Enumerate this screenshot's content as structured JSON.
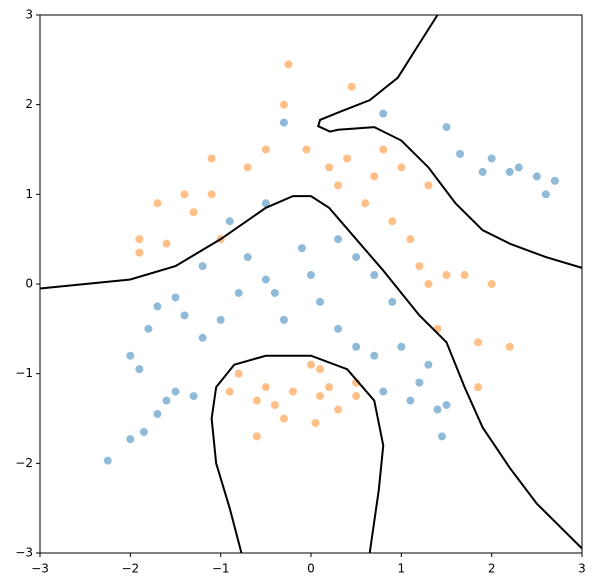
{
  "chart_data": {
    "type": "scatter",
    "xlim": [
      -3,
      3
    ],
    "ylim": [
      -3,
      3
    ],
    "xticks": [
      {
        "value": -3,
        "label": "−3"
      },
      {
        "value": -2,
        "label": "−2"
      },
      {
        "value": -1,
        "label": "−1"
      },
      0,
      1,
      2,
      3
    ],
    "yticks": [
      {
        "value": -3,
        "label": "−3"
      },
      {
        "value": -2,
        "label": "−2"
      },
      {
        "value": -1,
        "label": "−1"
      },
      0,
      1,
      2,
      3
    ],
    "grid": false,
    "series": [
      {
        "color": "#1f77b4",
        "x": [
          -2.25,
          -2,
          -1.85,
          -1.7,
          -1.6,
          -2,
          -1.9,
          -1.8,
          -1.7,
          -1.5,
          -1.4,
          -1.2,
          -1,
          -0.8,
          -0.7,
          -0.5,
          -0.3,
          -0.1,
          0,
          0.3,
          0.5,
          0.7,
          0.9,
          0.3,
          0.5,
          0.7,
          1,
          1.2,
          1.4,
          1.5,
          1.45,
          1.1,
          0.8,
          -1.3,
          -1.5,
          -0.3,
          0.8,
          1.5,
          1.65,
          2,
          2.2,
          2.3,
          2.5,
          2.6,
          2.7,
          1.9,
          -0.5,
          -0.9,
          -1.2,
          -0.4,
          0.1,
          1.3
        ],
        "y": [
          -1.97,
          -1.73,
          -1.65,
          -1.45,
          -1.3,
          -0.8,
          -0.95,
          -0.5,
          -0.25,
          -0.15,
          -0.35,
          -0.6,
          -0.4,
          -0.1,
          0.3,
          0.05,
          -0.4,
          0.4,
          0.1,
          0.5,
          0.3,
          0.1,
          -0.2,
          -0.5,
          -0.7,
          -0.8,
          -0.7,
          -1.1,
          -1.4,
          -1.35,
          -1.7,
          -1.3,
          -1.2,
          -1.25,
          -1.2,
          1.8,
          1.9,
          1.75,
          1.45,
          1.4,
          1.25,
          1.3,
          1.2,
          1,
          1.15,
          1.25,
          0.9,
          0.7,
          0.2,
          -0.1,
          -0.2,
          -0.9
        ]
      },
      {
        "color": "#ff7f0e",
        "x": [
          -1.9,
          -1.9,
          -1.7,
          -1.6,
          -1.4,
          -1.3,
          -1.1,
          -1,
          -0.7,
          -0.5,
          -0.3,
          -0.25,
          -0.05,
          0.2,
          0.4,
          0.45,
          0.3,
          0.6,
          0.8,
          1,
          0.9,
          1.1,
          1.2,
          1.3,
          1.5,
          1.7,
          2,
          1.85,
          2.2,
          1.4,
          1.85,
          -0.8,
          -0.6,
          -0.5,
          -0.4,
          -0.2,
          0,
          0.1,
          0.2,
          0.3,
          0.5,
          -0.6,
          -0.9,
          0.05,
          -0.3,
          0.5,
          0.1,
          1.3,
          -1.1,
          0.7
        ],
        "y": [
          0.35,
          0.5,
          0.9,
          0.45,
          1,
          0.8,
          1.4,
          0.5,
          1.3,
          1.5,
          2,
          2.45,
          1.5,
          1.3,
          1.4,
          2.2,
          1.1,
          0.9,
          1.5,
          1.3,
          0.7,
          0.5,
          0.2,
          0,
          0.1,
          0.1,
          0,
          -0.65,
          -0.7,
          -0.5,
          -1.15,
          -1,
          -1.3,
          -1.15,
          -1.35,
          -1.2,
          -0.9,
          -1.25,
          -1.15,
          -1.4,
          -1.1,
          -1.7,
          -1.2,
          -1.55,
          -1.5,
          -1.25,
          -0.95,
          1.1,
          1,
          1.2
        ]
      }
    ],
    "lines": [
      {
        "color": "#000000",
        "x": [
          -3,
          -2,
          -1.5,
          -1,
          -0.5,
          -0.2,
          0,
          0.2,
          0.5,
          0.8,
          1,
          1.2,
          1.5,
          1.7,
          1.9,
          2.2,
          2.5,
          2.8,
          3
        ],
        "y": [
          -0.05,
          0.05,
          0.2,
          0.5,
          0.85,
          0.98,
          0.98,
          0.85,
          0.5,
          0.15,
          -0.1,
          -0.35,
          -0.65,
          -1.15,
          -1.6,
          -2.05,
          -2.45,
          -2.75,
          -2.95
        ]
      },
      {
        "color": "#000000",
        "x": [
          1.4,
          1.18,
          0.96,
          0.65,
          0.32,
          0.1,
          0.08,
          0.21,
          0.3,
          0.7,
          1,
          1.3,
          1.6,
          1.9,
          2.2,
          2.6,
          3
        ],
        "y": [
          3,
          2.65,
          2.3,
          2.05,
          1.92,
          1.83,
          1.76,
          1.7,
          1.72,
          1.75,
          1.6,
          1.3,
          0.9,
          0.6,
          0.45,
          0.3,
          0.18
        ]
      },
      {
        "color": "#000000",
        "x": [
          -0.77,
          -0.9,
          -1.05,
          -1.1,
          -1.05,
          -0.85,
          -0.5,
          0,
          0.4,
          0.7,
          0.8,
          0.75,
          0.65
        ],
        "y": [
          -3,
          -2.5,
          -2,
          -1.5,
          -1.15,
          -0.9,
          -0.8,
          -0.8,
          -0.95,
          -1.3,
          -1.8,
          -2.3,
          -3
        ]
      }
    ]
  }
}
